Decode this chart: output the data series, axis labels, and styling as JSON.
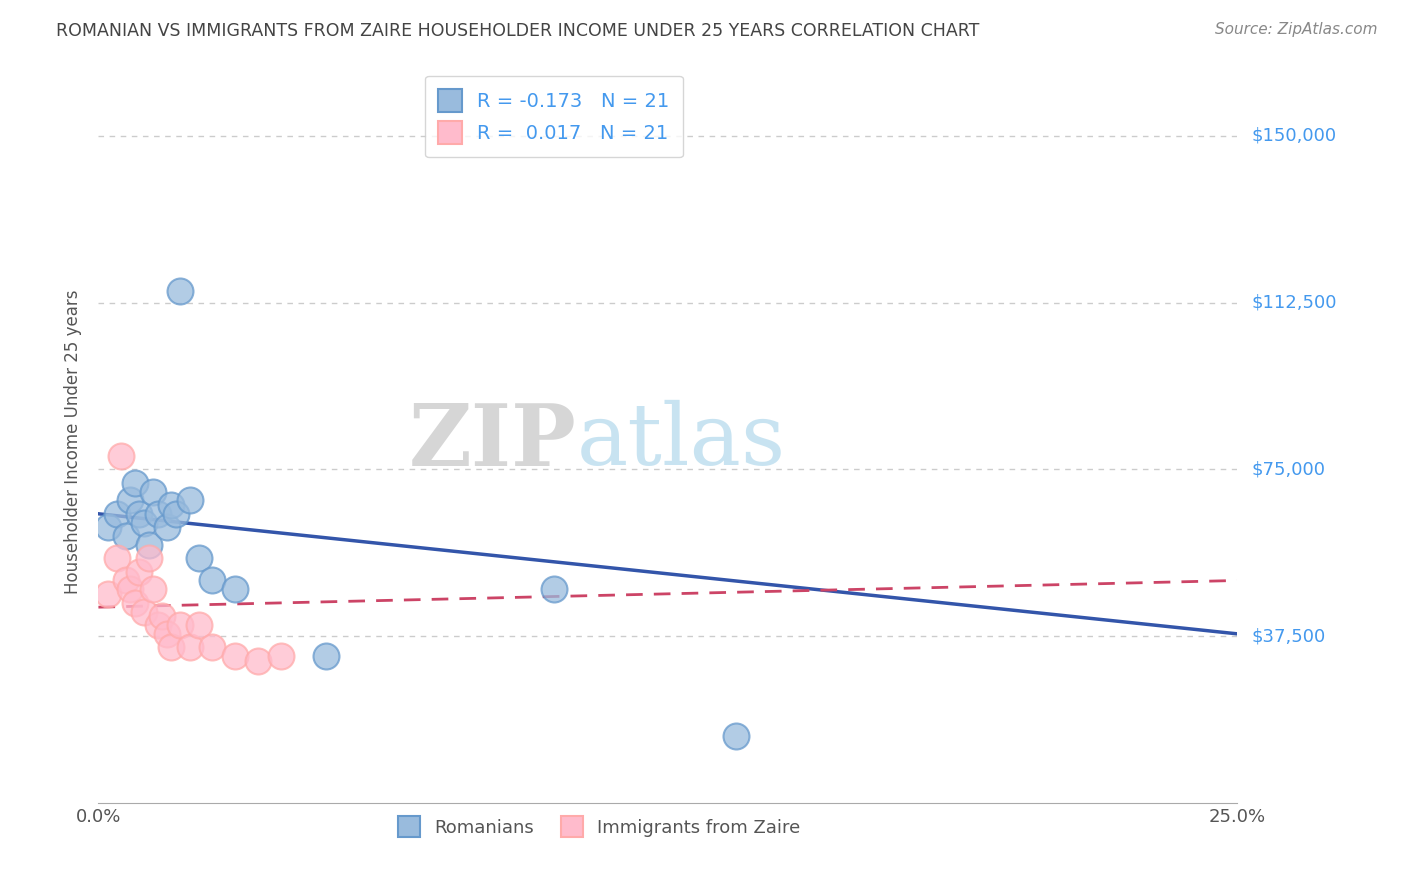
{
  "title": "ROMANIAN VS IMMIGRANTS FROM ZAIRE HOUSEHOLDER INCOME UNDER 25 YEARS CORRELATION CHART",
  "source": "Source: ZipAtlas.com",
  "ylabel": "Householder Income Under 25 years",
  "xlim": [
    0.0,
    0.25
  ],
  "ylim": [
    0,
    162500
  ],
  "xticks": [
    0.0,
    0.05,
    0.1,
    0.15,
    0.2,
    0.25
  ],
  "xticklabels": [
    "0.0%",
    "",
    "",
    "",
    "",
    "25.0%"
  ],
  "yticks": [
    37500,
    75000,
    112500,
    150000
  ],
  "yticklabels": [
    "$37,500",
    "$75,000",
    "$112,500",
    "$150,000"
  ],
  "romanian_x": [
    0.002,
    0.004,
    0.006,
    0.007,
    0.008,
    0.009,
    0.01,
    0.011,
    0.012,
    0.013,
    0.015,
    0.016,
    0.017,
    0.018,
    0.02,
    0.022,
    0.025,
    0.03,
    0.05,
    0.1,
    0.14
  ],
  "romanian_y": [
    62000,
    65000,
    60000,
    68000,
    72000,
    65000,
    63000,
    58000,
    70000,
    65000,
    62000,
    67000,
    65000,
    115000,
    68000,
    55000,
    50000,
    48000,
    33000,
    48000,
    15000
  ],
  "zaire_x": [
    0.002,
    0.004,
    0.005,
    0.006,
    0.007,
    0.008,
    0.009,
    0.01,
    0.011,
    0.012,
    0.013,
    0.014,
    0.015,
    0.016,
    0.018,
    0.02,
    0.022,
    0.025,
    0.03,
    0.035,
    0.04
  ],
  "zaire_y": [
    47000,
    55000,
    78000,
    50000,
    48000,
    45000,
    52000,
    43000,
    55000,
    48000,
    40000,
    42000,
    38000,
    35000,
    40000,
    35000,
    40000,
    35000,
    33000,
    32000,
    33000
  ],
  "romanian_color": "#99bbdd",
  "zaire_color": "#ffbbcc",
  "romanian_edge_color": "#6699cc",
  "zaire_edge_color": "#ffaaaa",
  "romanian_line_color": "#3355aa",
  "zaire_line_color": "#cc4466",
  "background_color": "#ffffff",
  "grid_color": "#cccccc",
  "title_color": "#444444",
  "axis_label_color": "#555555",
  "yaxis_tick_color": "#4499ee",
  "R_romanian": -0.173,
  "N_romanian": 21,
  "R_zaire": 0.017,
  "N_zaire": 21,
  "watermark_zip": "ZIP",
  "watermark_atlas": "atlas",
  "legend_labels": [
    "Romanians",
    "Immigrants from Zaire"
  ]
}
